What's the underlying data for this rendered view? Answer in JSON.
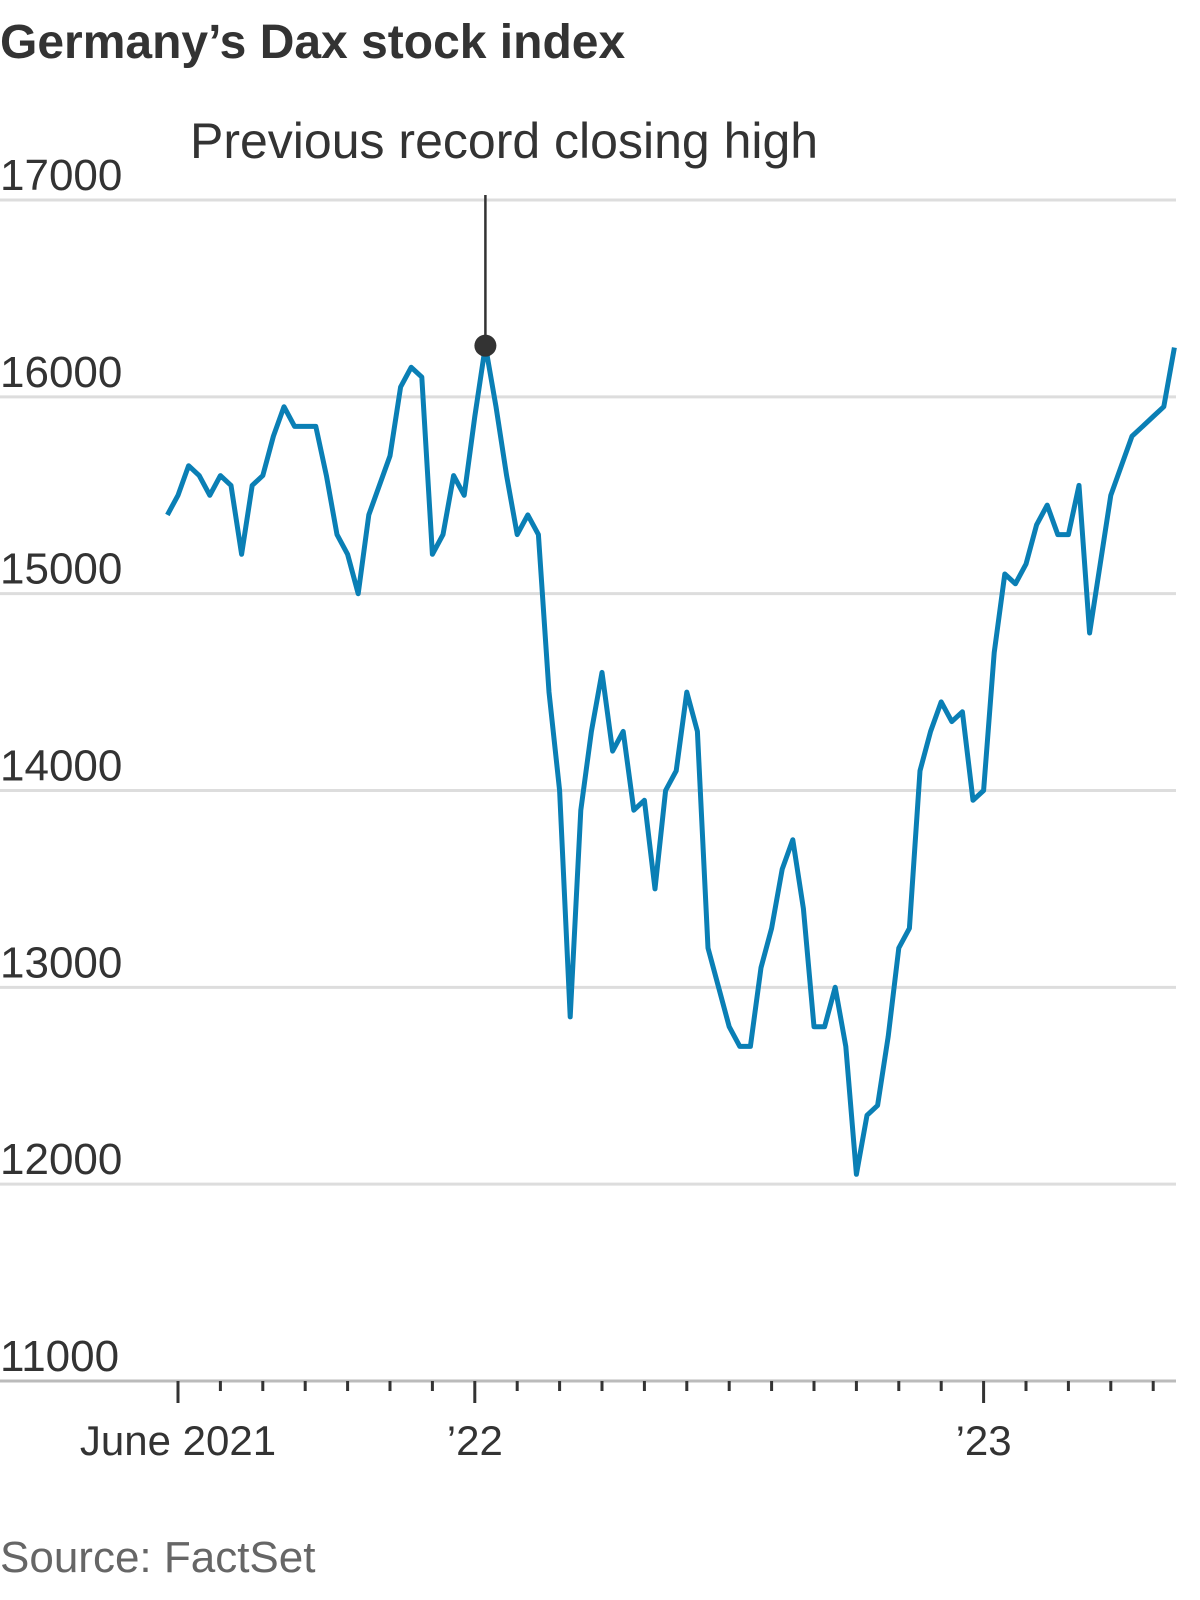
{
  "chart_data": {
    "type": "line",
    "title": "Germany’s Dax stock index",
    "source": "Source: FactSet",
    "annotation": {
      "text": "Previous record closing high"
    },
    "color": "#0a7fb5",
    "grid": true,
    "ylim": [
      11000,
      17000
    ],
    "yticks": [
      11000,
      12000,
      13000,
      14000,
      15000,
      16000,
      17000
    ],
    "categories": [
      null,
      "June 2021",
      null,
      null,
      null,
      null,
      null,
      null,
      null,
      null,
      null,
      null,
      null,
      null,
      null,
      null,
      null,
      null,
      null,
      null,
      null,
      null,
      null,
      null,
      null,
      null,
      null,
      null,
      null,
      "’22",
      null,
      null,
      null,
      null,
      null,
      null,
      null,
      null,
      null,
      null,
      null,
      null,
      null,
      null,
      null,
      null,
      null,
      null,
      null,
      null,
      null,
      null,
      null,
      null,
      null,
      null,
      null,
      null,
      null,
      null,
      null,
      null,
      null,
      null,
      null,
      null,
      null,
      null,
      null,
      null,
      null,
      null,
      null,
      null,
      null,
      null,
      null,
      "’23",
      null,
      null,
      null,
      null,
      null,
      null,
      null,
      null,
      null,
      null,
      null,
      null,
      null,
      null,
      null,
      null,
      null,
      null
    ],
    "values": [
      15400,
      15500,
      15650,
      15600,
      15500,
      15600,
      15550,
      15200,
      15550,
      15600,
      15800,
      15950,
      15850,
      15850,
      15850,
      15600,
      15300,
      15200,
      15000,
      15400,
      15550,
      15700,
      16050,
      16150,
      16100,
      15200,
      15300,
      15600,
      15500,
      15900,
      16260,
      15950,
      15600,
      15300,
      15400,
      15300,
      14500,
      14000,
      12850,
      13900,
      14300,
      14600,
      14200,
      14300,
      13900,
      13950,
      13500,
      14000,
      14100,
      14500,
      14300,
      13200,
      13000,
      12800,
      12700,
      12700,
      13100,
      13300,
      13600,
      13750,
      13400,
      12800,
      12800,
      13000,
      12700,
      12050,
      12350,
      12400,
      12750,
      13200,
      13300,
      14100,
      14300,
      14450,
      14350,
      14400,
      13950,
      14000,
      14700,
      15100,
      15050,
      15150,
      15350,
      15450,
      15300,
      15300,
      15550,
      14800,
      15150,
      15500,
      15650,
      15800,
      15850,
      15900,
      15950,
      16250
    ]
  }
}
